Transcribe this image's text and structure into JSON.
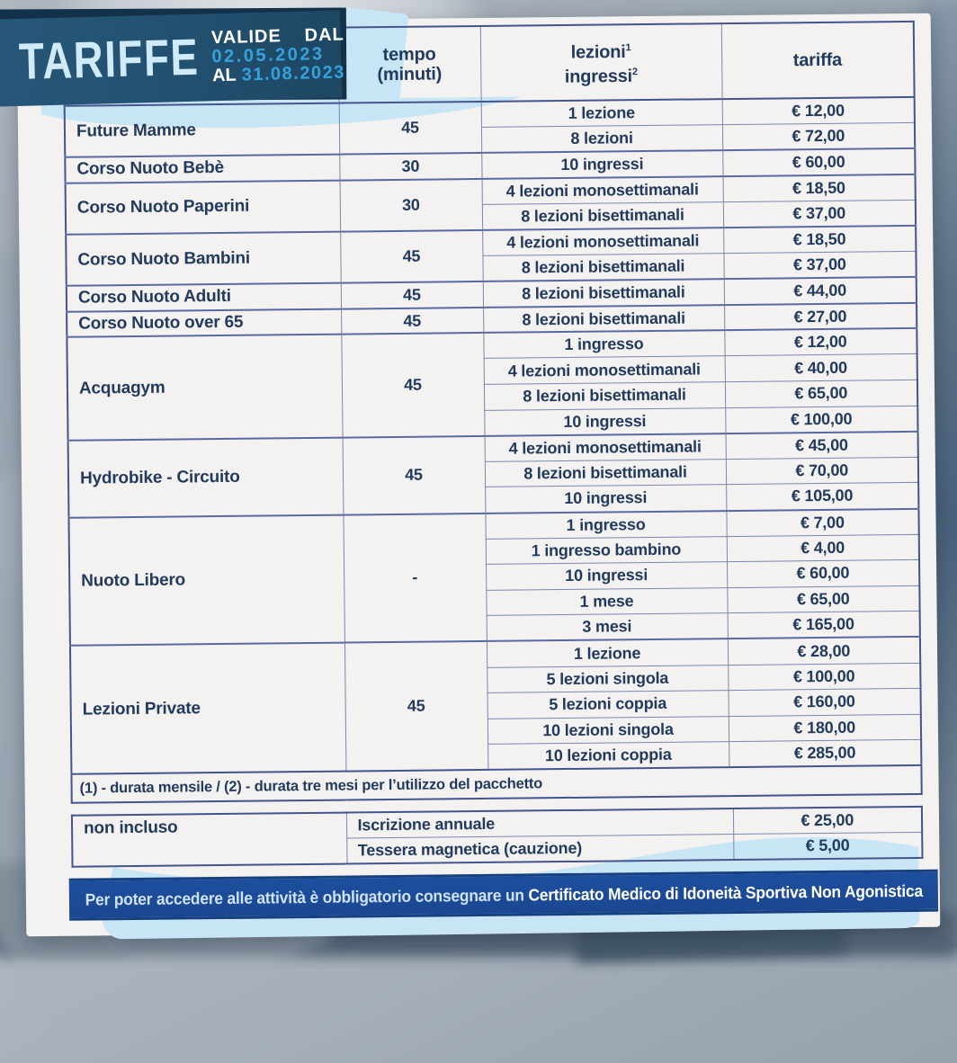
{
  "header": {
    "title": "TARIFFE",
    "valid_word": "VALIDE",
    "valid_dal": "DAL",
    "valid_from": "02.05.2023",
    "valid_al": "AL",
    "valid_to": "31.08.2023"
  },
  "table": {
    "header": {
      "tempo_line1": "tempo",
      "tempo_line2": "(minuti)",
      "lessons_line1": "lezioni",
      "lessons_sup1": "1",
      "lessons_line2": "ingressi",
      "lessons_sup2": "2",
      "tariffa": "tariffa"
    },
    "groups": [
      {
        "name": "Future Mamme",
        "tempo": "45",
        "rows": [
          [
            "1 lezione",
            "€ 12,00"
          ],
          [
            "8 lezioni",
            "€ 72,00"
          ]
        ]
      },
      {
        "name": "Corso Nuoto Bebè",
        "tempo": "30",
        "rows": [
          [
            "10 ingressi",
            "€ 60,00"
          ]
        ]
      },
      {
        "name": "Corso Nuoto Paperini",
        "tempo": "30",
        "rows": [
          [
            "4 lezioni monosettimanali",
            "€ 18,50"
          ],
          [
            "8 lezioni bisettimanali",
            "€ 37,00"
          ]
        ]
      },
      {
        "name": "Corso Nuoto Bambini",
        "tempo": "45",
        "rows": [
          [
            "4 lezioni monosettimanali",
            "€ 18,50"
          ],
          [
            "8 lezioni bisettimanali",
            "€ 37,00"
          ]
        ]
      },
      {
        "name": "Corso Nuoto Adulti",
        "tempo": "45",
        "rows": [
          [
            "8 lezioni bisettimanali",
            "€ 44,00"
          ]
        ]
      },
      {
        "name": "Corso Nuoto over 65",
        "tempo": "45",
        "rows": [
          [
            "8 lezioni bisettimanali",
            "€ 27,00"
          ]
        ]
      },
      {
        "name": "Acquagym",
        "tempo": "45",
        "rows": [
          [
            "1 ingresso",
            "€ 12,00"
          ],
          [
            "4 lezioni monosettimanali",
            "€ 40,00"
          ],
          [
            "8 lezioni bisettimanali",
            "€ 65,00"
          ],
          [
            "10 ingressi",
            "€ 100,00"
          ]
        ]
      },
      {
        "name": "Hydrobike - Circuito",
        "tempo": "45",
        "rows": [
          [
            "4 lezioni monosettimanali",
            "€ 45,00"
          ],
          [
            "8 lezioni bisettimanali",
            "€ 70,00"
          ],
          [
            "10 ingressi",
            "€ 105,00"
          ]
        ]
      },
      {
        "name": "Nuoto Libero",
        "tempo": "-",
        "rows": [
          [
            "1 ingresso",
            "€ 7,00"
          ],
          [
            "1 ingresso bambino",
            "€ 4,00"
          ],
          [
            "10 ingressi",
            "€ 60,00"
          ],
          [
            "1 mese",
            "€ 65,00"
          ],
          [
            "3 mesi",
            "€ 165,00"
          ]
        ]
      },
      {
        "name": "Lezioni Private",
        "tempo": "45",
        "rows": [
          [
            "1 lezione",
            "€ 28,00"
          ],
          [
            "5 lezioni singola",
            "€ 100,00"
          ],
          [
            "5 lezioni coppia",
            "€ 160,00"
          ],
          [
            "10 lezioni singola",
            "€ 180,00"
          ],
          [
            "10 lezioni coppia",
            "€ 285,00"
          ]
        ]
      }
    ],
    "footnote": "(1) - durata mensile / (2) - durata tre mesi per l’utilizzo del pacchetto"
  },
  "extras": {
    "label": "non incluso",
    "rows": [
      [
        "Iscrizione annuale",
        "€ 25,00"
      ],
      [
        "Tessera magnetica (cauzione)",
        "€ 5,00"
      ]
    ]
  },
  "notice": {
    "text_normal": "Per poter accedere alle attività è obbligatorio consegnare un ",
    "text_bold": "Certificato Medico di Idoneità Sportiva Non Agonistica"
  },
  "colors": {
    "banner_navy": "#224f6e",
    "banner_shadow_navy": "#14314a",
    "title_ice_blue": "#cfeaf8",
    "date_blue": "#35a1dd",
    "table_text_navy": "#223a5e",
    "table_border": "#7a86ae",
    "table_border_strong": "#44548c",
    "light_blue_wave": "#c8e5f6",
    "notice_blue": "#1d4f9e",
    "card_background": "#f3f2f0"
  }
}
